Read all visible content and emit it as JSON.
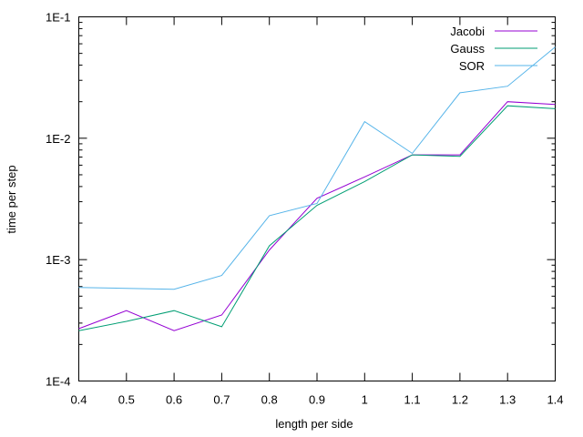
{
  "chart_data": {
    "type": "line",
    "title": "",
    "xlabel": "length per side",
    "ylabel": "time per step",
    "x": [
      0.4,
      0.5,
      0.6,
      0.7,
      0.8,
      0.9,
      1.0,
      1.1,
      1.2,
      1.3,
      1.4
    ],
    "xlim": [
      0.4,
      1.4
    ],
    "x_ticks": [
      "0.4",
      "0.5",
      "0.6",
      "0.7",
      "0.8",
      "0.9",
      "1",
      "1.1",
      "1.2",
      "1.3",
      "1.4"
    ],
    "y_scale": "log",
    "ylim": [
      0.0001,
      0.1
    ],
    "y_ticks": [
      {
        "value": 0.1,
        "label": "1E-1"
      },
      {
        "value": 0.01,
        "label": "1E-2"
      },
      {
        "value": 0.001,
        "label": "1E-3"
      },
      {
        "value": 0.0001,
        "label": "1E-4"
      }
    ],
    "grid": false,
    "legend_position": "top-right",
    "series": [
      {
        "name": "Jacobi",
        "color": "#9400d3",
        "values": [
          0.00027,
          0.00038,
          0.00026,
          0.00035,
          0.0012,
          0.0032,
          0.0048,
          0.0073,
          0.0073,
          0.02,
          0.019
        ]
      },
      {
        "name": "Gauss",
        "color": "#009e73",
        "values": [
          0.00026,
          0.00031,
          0.00038,
          0.00028,
          0.0013,
          0.0028,
          0.0044,
          0.0073,
          0.0071,
          0.0185,
          0.0175
        ]
      },
      {
        "name": "SOR",
        "color": "#56b4e9",
        "values": [
          0.00059,
          0.00058,
          0.00057,
          0.00074,
          0.0023,
          0.0029,
          0.0137,
          0.0075,
          0.0237,
          0.0268,
          0.0565
        ]
      }
    ]
  }
}
